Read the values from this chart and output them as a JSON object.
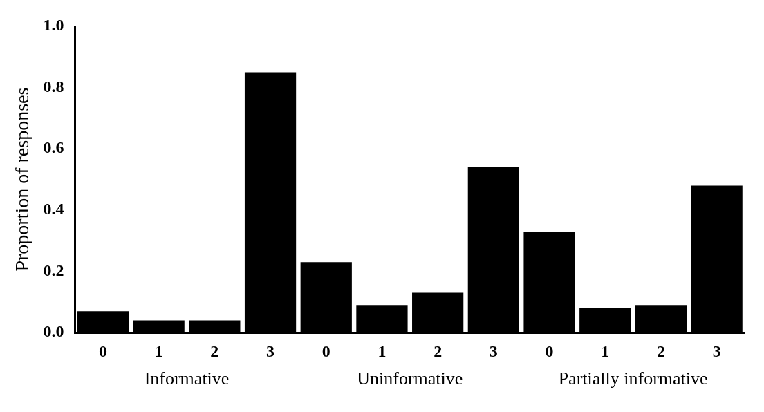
{
  "chart_data": {
    "type": "bar",
    "ylabel": "Proportion of responses",
    "categories": [
      "0",
      "1",
      "2",
      "3",
      "0",
      "1",
      "2",
      "3",
      "0",
      "1",
      "2",
      "3"
    ],
    "values": [
      0.07,
      0.04,
      0.04,
      0.85,
      0.23,
      0.09,
      0.13,
      0.54,
      0.33,
      0.08,
      0.09,
      0.48
    ],
    "color": "#000000",
    "ylim": [
      0,
      1
    ],
    "yticks": [
      {
        "value": 0,
        "label": "0.0"
      },
      0.2,
      0.4,
      0.6,
      0.8,
      {
        "value": 1,
        "label": "1.0"
      }
    ],
    "grid": false,
    "legend": false,
    "annotations": [
      "Informative",
      "Uninformative",
      "Partially informative"
    ]
  }
}
